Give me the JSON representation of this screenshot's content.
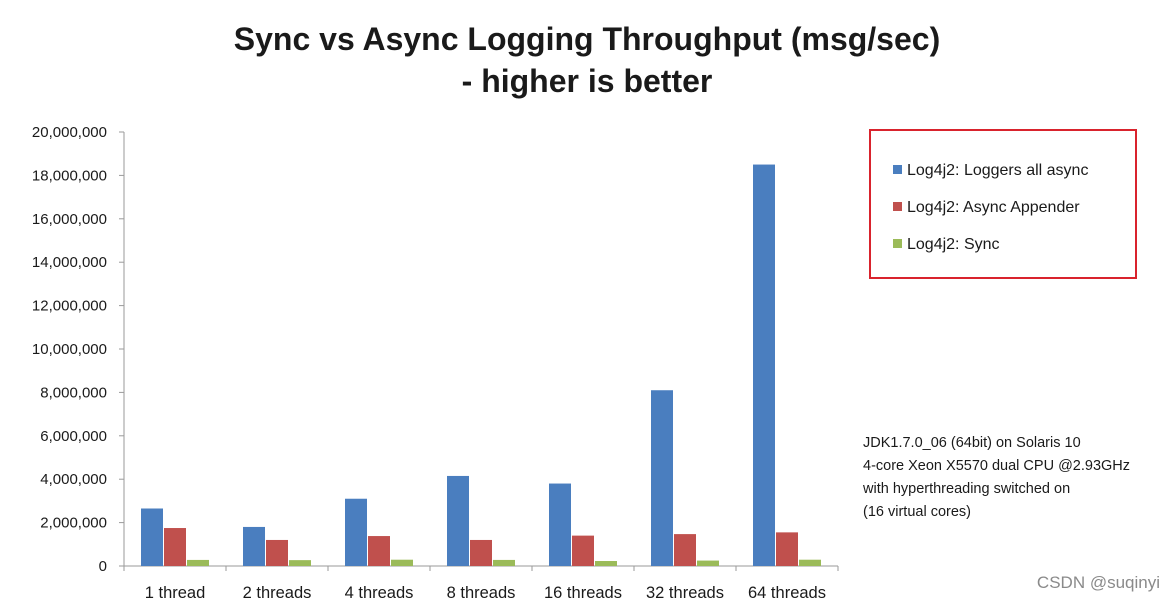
{
  "chart_data": {
    "type": "bar",
    "title": [
      "Sync vs Async Logging Throughput (msg/sec)",
      "- higher is better"
    ],
    "xlabel": "",
    "ylabel": "",
    "ylim": [
      0,
      20000000
    ],
    "yticks": [
      0,
      2000000,
      4000000,
      6000000,
      8000000,
      10000000,
      12000000,
      14000000,
      16000000,
      18000000,
      20000000
    ],
    "ytick_labels": [
      "0",
      "2,000,000",
      "4,000,000",
      "6,000,000",
      "8,000,000",
      "10,000,000",
      "12,000,000",
      "14,000,000",
      "16,000,000",
      "18,000,000",
      "20,000,000"
    ],
    "grid": false,
    "legend_position": "right",
    "categories": [
      "1 thread",
      "2 threads",
      "4 threads",
      "8 threads",
      "16 threads",
      "32 threads",
      "64 threads"
    ],
    "series": [
      {
        "name": "Log4j2: Loggers all async",
        "color": "#4a7ebf",
        "values": [
          2650000,
          1800000,
          3100000,
          4150000,
          3800000,
          8100000,
          18500000
        ]
      },
      {
        "name": "Log4j2: Async Appender",
        "color": "#c0504d",
        "values": [
          1750000,
          1200000,
          1380000,
          1200000,
          1400000,
          1470000,
          1550000
        ]
      },
      {
        "name": "Log4j2: Sync",
        "color": "#9bbb59",
        "values": [
          280000,
          270000,
          290000,
          280000,
          230000,
          250000,
          290000
        ]
      }
    ],
    "annotation": [
      "JDK1.7.0_06 (64bit) on Solaris 10",
      "4-core Xeon X5570 dual CPU @2.93GHz",
      "with hyperthreading switched on",
      "(16 virtual cores)"
    ]
  },
  "watermark": "CSDN @suqinyi"
}
